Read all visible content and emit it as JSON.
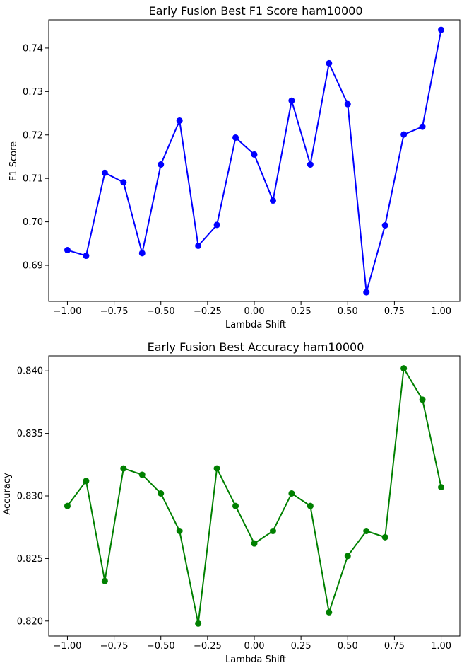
{
  "chart_data": [
    {
      "type": "line",
      "title": "Early Fusion Best F1 Score ham10000",
      "xlabel": "Lambda Shift",
      "ylabel": "F1 Score",
      "color": "#0000ff",
      "xlim": [
        -1.1,
        1.1
      ],
      "ylim": [
        0.6817,
        0.7465
      ],
      "grid": false,
      "x": [
        -1.0,
        -0.9,
        -0.8,
        -0.7,
        -0.6,
        -0.5,
        -0.4,
        -0.3,
        -0.2,
        -0.1,
        0.0,
        0.1,
        0.2,
        0.3,
        0.4,
        0.5,
        0.6,
        0.7,
        0.8,
        0.9,
        1.0
      ],
      "y": [
        0.6935,
        0.6922,
        0.7113,
        0.7091,
        0.6928,
        0.7132,
        0.7233,
        0.6945,
        0.6993,
        0.7194,
        0.7155,
        0.7049,
        0.7279,
        0.7132,
        0.7365,
        0.7271,
        0.6838,
        0.6992,
        0.7201,
        0.7219,
        0.7442
      ],
      "xticks": [
        -1.0,
        -0.75,
        -0.5,
        -0.25,
        0.0,
        0.25,
        0.5,
        0.75,
        1.0
      ],
      "xtick_labels": [
        "−1.00",
        "−0.75",
        "−0.50",
        "−0.25",
        "0.00",
        "0.25",
        "0.50",
        "0.75",
        "1.00"
      ],
      "yticks": [
        0.69,
        0.7,
        0.71,
        0.72,
        0.73,
        0.74
      ],
      "ytick_labels": [
        "0.69",
        "0.70",
        "0.71",
        "0.72",
        "0.73",
        "0.74"
      ]
    },
    {
      "type": "line",
      "title": "Early Fusion Best Accuracy ham10000",
      "xlabel": "Lambda Shift",
      "ylabel": "Accuracy",
      "color": "#008000",
      "xlim": [
        -1.1,
        1.1
      ],
      "ylim": [
        0.8188,
        0.8412
      ],
      "grid": false,
      "x": [
        -1.0,
        -0.9,
        -0.8,
        -0.7,
        -0.6,
        -0.5,
        -0.4,
        -0.3,
        -0.2,
        -0.1,
        0.0,
        0.1,
        0.2,
        0.3,
        0.4,
        0.5,
        0.6,
        0.7,
        0.8,
        0.9,
        1.0
      ],
      "y": [
        0.8292,
        0.8312,
        0.8232,
        0.8322,
        0.8317,
        0.8302,
        0.8272,
        0.8198,
        0.8322,
        0.8292,
        0.8262,
        0.8272,
        0.8302,
        0.8292,
        0.8207,
        0.8252,
        0.8272,
        0.8267,
        0.8402,
        0.8377,
        0.8307
      ],
      "xticks": [
        -1.0,
        -0.75,
        -0.5,
        -0.25,
        0.0,
        0.25,
        0.5,
        0.75,
        1.0
      ],
      "xtick_labels": [
        "−1.00",
        "−0.75",
        "−0.50",
        "−0.25",
        "0.00",
        "0.25",
        "0.50",
        "0.75",
        "1.00"
      ],
      "yticks": [
        0.82,
        0.825,
        0.83,
        0.835,
        0.84
      ],
      "ytick_labels": [
        "0.820",
        "0.825",
        "0.830",
        "0.835",
        "0.840"
      ]
    }
  ]
}
